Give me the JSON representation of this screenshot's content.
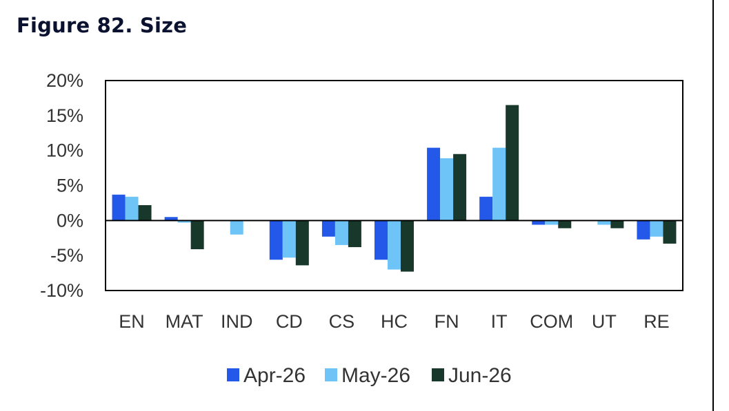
{
  "title": "Figure 82. Size",
  "chart_data": {
    "type": "bar",
    "categories": [
      "EN",
      "MAT",
      "IND",
      "CD",
      "CS",
      "HC",
      "FN",
      "IT",
      "COM",
      "UT",
      "RE"
    ],
    "series": [
      {
        "name": "Apr-26",
        "color": "#2358e8",
        "values": [
          3.7,
          0.5,
          0.0,
          -5.6,
          -2.3,
          -5.6,
          10.4,
          3.4,
          -0.6,
          0.0,
          -2.7
        ]
      },
      {
        "name": "May-26",
        "color": "#6ec3f7",
        "values": [
          3.4,
          -0.3,
          -2.0,
          -5.3,
          -3.5,
          -7.0,
          8.9,
          10.4,
          -0.6,
          -0.6,
          -2.3
        ]
      },
      {
        "name": "Jun-26",
        "color": "#17382a",
        "values": [
          2.2,
          -4.1,
          0.0,
          -6.4,
          -3.8,
          -7.3,
          9.5,
          16.5,
          -1.1,
          -1.1,
          -3.3
        ]
      }
    ],
    "yticks": [
      "20%",
      "15%",
      "10%",
      "5%",
      "0%",
      "-5%",
      "-10%"
    ],
    "ylim": [
      -10,
      20
    ],
    "xlabel": "",
    "ylabel": "",
    "legend_position": "bottom"
  }
}
